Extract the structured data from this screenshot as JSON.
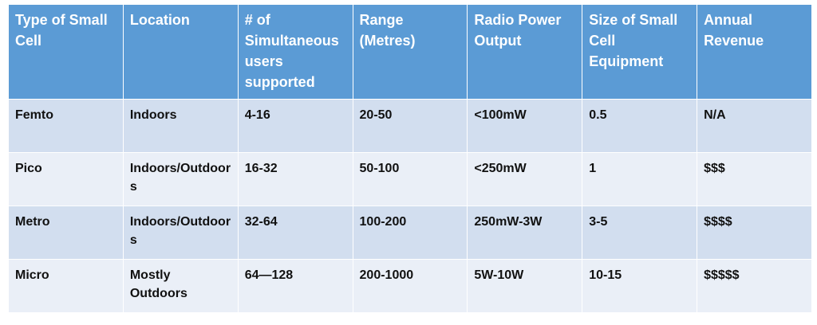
{
  "table": {
    "headers": [
      "Type of Small Cell",
      "Location",
      "# of Simultaneous users supported",
      "Range (Metres)",
      "Radio Power Output",
      "Size of Small Cell Equipment",
      "Annual Revenue"
    ],
    "rows": [
      [
        "Femto",
        "Indoors",
        "4-16",
        "20-50",
        "<100mW",
        "0.5",
        "N/A"
      ],
      [
        "Pico",
        "Indoors/Outdoors",
        "16-32",
        "50-100",
        "<250mW",
        "1",
        "$$$"
      ],
      [
        "Metro",
        "Indoors/Outdoors",
        "32-64",
        "100-200",
        "250mW-3W",
        "3-5",
        "$$$$"
      ],
      [
        "Micro",
        "Mostly Outdoors",
        "64—128",
        "200-1000",
        "5W-10W",
        "10-15",
        "$$$$$"
      ]
    ]
  }
}
